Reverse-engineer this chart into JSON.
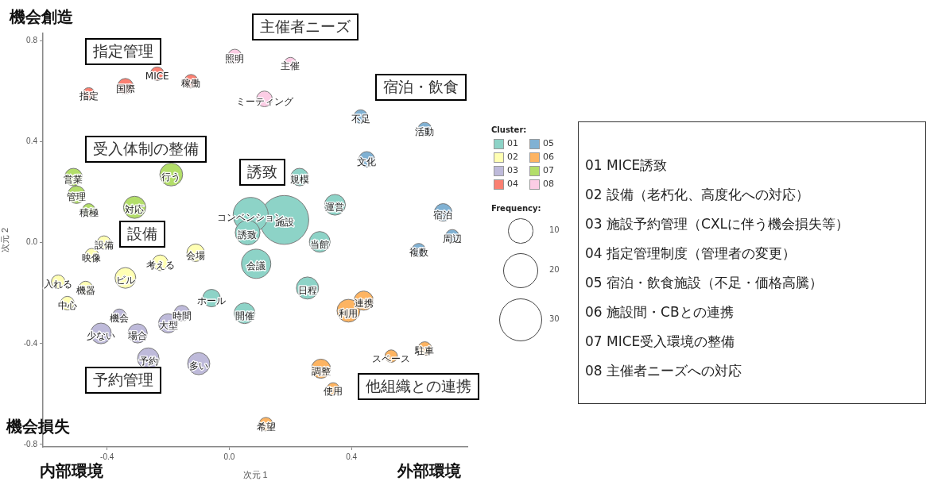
{
  "chart_data": {
    "type": "bubble",
    "xlabel": "次元 1",
    "ylabel": "次元 2",
    "legend_title": "Cluster:",
    "legend": "right",
    "grid": false,
    "xlim": [
      -0.61,
      0.78
    ],
    "xticks": [
      -0.4,
      {
        "value": 0,
        "label": "0.0"
      },
      0.4
    ],
    "ylim": [
      -0.81,
      0.83
    ],
    "yticks": [
      -0.8,
      -0.4,
      {
        "value": 0,
        "label": "0.0"
      },
      0.4,
      0.8
    ],
    "size_legend": [
      10,
      20,
      30
    ],
    "series": [
      {
        "name": "01",
        "color": "#8dd3c7",
        "x": [
          0.23,
          0.346,
          0.18,
          0.07,
          0.296,
          0.06,
          0.088,
          0.256,
          0.05,
          -0.058
        ],
        "values": [
          0.26,
          0.15,
          0.09,
          0.11,
          0.003,
          0.04,
          -0.084,
          -0.18,
          -0.28,
          -0.22
        ],
        "sizes": [
          5,
          7,
          39,
          20,
          7,
          10,
          14,
          8,
          7,
          5
        ],
        "value_labels": [
          "規模",
          "運営",
          "施設",
          "コンベンション",
          "当館",
          "誘致",
          "会議",
          "日程",
          "開催",
          "ホール"
        ]
      },
      {
        "name": "02",
        "color": "#ffffb3",
        "x": [
          -0.41,
          -0.45,
          -0.226,
          -0.11,
          -0.56,
          -0.47,
          -0.34,
          -0.53
        ],
        "values": [
          0.0,
          -0.05,
          -0.08,
          -0.04,
          -0.155,
          -0.18,
          -0.14,
          -0.24
        ],
        "sizes": [
          3,
          3,
          4,
          5,
          3,
          3,
          7,
          3
        ],
        "value_labels": [
          "設備",
          "映像",
          "考える",
          "会場",
          "入れる",
          "機器",
          "ビル",
          "中心"
        ]
      },
      {
        "name": "03",
        "color": "#bebada",
        "x": [
          -0.36,
          -0.155,
          -0.2,
          -0.3,
          -0.42,
          -0.265,
          -0.1
        ],
        "values": [
          -0.29,
          -0.28,
          -0.32,
          -0.36,
          -0.36,
          -0.46,
          -0.48
        ],
        "sizes": [
          3,
          4,
          6,
          6,
          7,
          7.5,
          8
        ],
        "value_labels": [
          "機会",
          "時間",
          "大型",
          "場合",
          "少ない",
          "予約",
          "多い"
        ]
      },
      {
        "name": "04",
        "color": "#fb8072",
        "x": [
          -0.46,
          -0.34,
          -0.236,
          -0.125
        ],
        "values": [
          0.59,
          0.62,
          0.67,
          0.64
        ],
        "sizes": [
          2.5,
          4,
          3,
          3
        ],
        "value_labels": [
          "指定",
          "国際",
          "MICE",
          "稼働"
        ]
      },
      {
        "name": "05",
        "color": "#80b1d3",
        "x": [
          0.43,
          0.64,
          0.45,
          0.7,
          0.73,
          0.62
        ],
        "values": [
          0.5,
          0.45,
          0.33,
          0.12,
          0.025,
          -0.03
        ],
        "sizes": [
          3,
          3,
          4,
          5,
          3,
          3
        ],
        "value_labels": [
          "不足",
          "活動",
          "文化",
          "宿泊",
          "周辺",
          "複数"
        ]
      },
      {
        "name": "06",
        "color": "#fdb462",
        "x": [
          0.39,
          0.44,
          0.64,
          0.53,
          0.3,
          0.34,
          0.12
        ],
        "values": [
          -0.27,
          -0.23,
          -0.42,
          -0.45,
          -0.5,
          -0.58,
          -0.72
        ],
        "sizes": [
          8.5,
          6,
          3,
          2.5,
          6,
          2.5,
          3
        ],
        "value_labels": [
          "利用",
          "連携",
          "駐車",
          "スペース",
          "調整",
          "使用",
          "希望"
        ]
      },
      {
        "name": "07",
        "color": "#b3de69",
        "x": [
          -0.51,
          -0.5,
          -0.46,
          -0.19,
          -0.31
        ],
        "values": [
          0.26,
          0.19,
          0.13,
          0.27,
          0.14
        ],
        "sizes": [
          5,
          5,
          2.5,
          8.5,
          8
        ],
        "value_labels": [
          "営業",
          "管理",
          "積極",
          "行う",
          "対応"
        ]
      },
      {
        "name": "08",
        "color": "#fccde5",
        "x": [
          0.018,
          0.2,
          0.115
        ],
        "values": [
          0.74,
          0.71,
          0.57
        ],
        "sizes": [
          3,
          2.5,
          4
        ],
        "value_labels": [
          "照明",
          "主催",
          "ミーティング"
        ]
      }
    ],
    "annotations": [
      "機会創造",
      "機会損失",
      "内部環境",
      "外部環境",
      "指定管理",
      "主催者ニーズ",
      "宿泊・飲食",
      "受入体制の整備",
      "誘致",
      "設備",
      "予約管理",
      "他組織との連携",
      "Frequency:",
      "01 MICE誘致",
      "02 設備（老朽化、高度化への対応）",
      "03 施設予約管理（CXLに伴う機会損失等）",
      "04 指定管理制度（管理者の変更）",
      "05 宿泊・飲食施設（不足・価格高騰）",
      "06 施設間・CBとの連携",
      "07 MICE受入環境の整備",
      "08 主催者ニーズへの対応"
    ]
  }
}
